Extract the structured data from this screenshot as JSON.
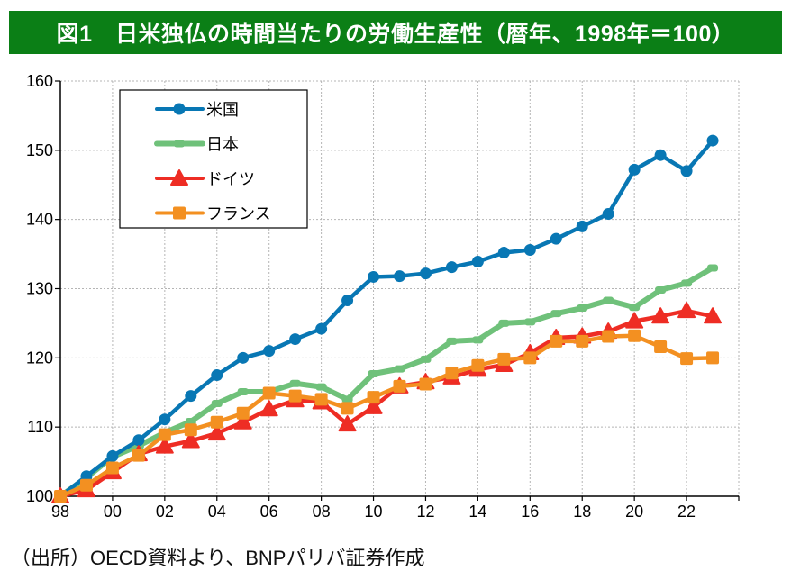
{
  "header": {
    "title": "図1　日米独仏の時間当たりの労働生産性（暦年、1998年＝100）",
    "background_color": "#0b7f16"
  },
  "footer": {
    "source": "（出所）OECD資料より、BNPパリバ証券作成"
  },
  "chart_data": {
    "type": "line",
    "title": "図1　日米独仏の時間当たりの労働生産性（暦年、1998年＝100）",
    "xlabel": "",
    "ylabel": "",
    "ylim": [
      100,
      160
    ],
    "yticks": [
      100,
      110,
      120,
      130,
      140,
      150,
      160
    ],
    "ytick_labels": [
      "100",
      "110",
      "120",
      "130",
      "140",
      "150",
      "160"
    ],
    "x": [
      1998,
      1999,
      2000,
      2001,
      2002,
      2003,
      2004,
      2005,
      2006,
      2007,
      2008,
      2009,
      2010,
      2011,
      2012,
      2013,
      2014,
      2015,
      2016,
      2017,
      2018,
      2019,
      2020,
      2021,
      2022,
      2023
    ],
    "xlim": [
      1998,
      2024
    ],
    "xticks": [
      1998,
      2000,
      2002,
      2004,
      2006,
      2008,
      2010,
      2012,
      2014,
      2016,
      2018,
      2020,
      2022
    ],
    "xtick_labels": [
      "98",
      "00",
      "02",
      "04",
      "06",
      "08",
      "10",
      "12",
      "14",
      "16",
      "18",
      "20",
      "22"
    ],
    "grid": true,
    "legend_position": "top-left",
    "series": [
      {
        "name": "米国",
        "color": "#0877b4",
        "marker": "circle",
        "values": [
          100,
          102.9,
          105.8,
          108.1,
          111.1,
          114.5,
          117.5,
          120.0,
          121.0,
          122.7,
          124.2,
          128.3,
          131.7,
          131.8,
          132.2,
          133.1,
          133.9,
          135.2,
          135.6,
          137.2,
          139.0,
          140.8,
          147.2,
          149.3,
          147.0,
          151.4
        ]
      },
      {
        "name": "日本",
        "color": "#6fc17a",
        "marker": "dash",
        "values": [
          100,
          102.7,
          105.7,
          107.3,
          109.2,
          110.8,
          113.4,
          115.1,
          115.1,
          116.3,
          115.8,
          114.0,
          117.7,
          118.4,
          119.8,
          122.4,
          122.6,
          125.0,
          125.2,
          126.4,
          127.2,
          128.3,
          127.3,
          129.8,
          130.8,
          133.0
        ]
      },
      {
        "name": "ドイツ",
        "color": "#ee2d24",
        "marker": "triangle",
        "values": [
          100,
          100.9,
          103.5,
          106.1,
          107.2,
          108.0,
          109.1,
          110.7,
          112.6,
          113.9,
          113.6,
          110.4,
          112.9,
          115.9,
          116.5,
          117.2,
          118.3,
          119.0,
          120.7,
          122.9,
          123.1,
          123.8,
          125.3,
          126.0,
          126.8,
          126.0
        ]
      },
      {
        "name": "フランス",
        "color": "#f39021",
        "marker": "square",
        "values": [
          100,
          101.6,
          104.1,
          105.9,
          108.9,
          109.6,
          110.7,
          112.0,
          114.9,
          114.5,
          114.0,
          112.7,
          114.3,
          115.9,
          116.2,
          117.8,
          118.9,
          119.8,
          120.0,
          122.4,
          122.4,
          123.1,
          123.2,
          121.6,
          119.9,
          120.0
        ]
      }
    ]
  }
}
